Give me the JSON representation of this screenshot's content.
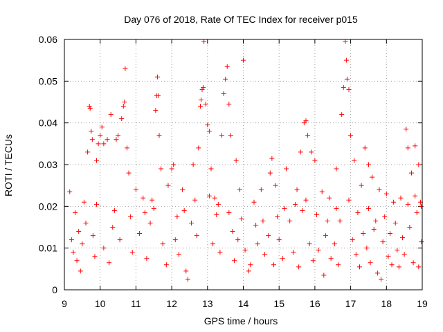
{
  "chart_data": {
    "type": "scatter",
    "title": "Day 076 of 2018, Rate Of TEC Index for receiver p015",
    "xlabel": "GPS time / hours",
    "ylabel": "ROTI / TECUs",
    "xlim": [
      9,
      19
    ],
    "ylim": [
      0,
      0.06
    ],
    "x_ticks": [
      9,
      10,
      11,
      12,
      13,
      14,
      15,
      16,
      17,
      18,
      19
    ],
    "y_ticks": [
      0,
      0.01,
      0.02,
      0.03,
      0.04,
      0.05,
      0.06
    ],
    "x_tick_labels": [
      "9",
      "10",
      "11",
      "12",
      "13",
      "14",
      "15",
      "16",
      "17",
      "18",
      "19"
    ],
    "y_tick_labels": [
      "0",
      "0.01",
      "0.02",
      "0.03",
      "0.04",
      "0.05",
      "0.06"
    ],
    "grid": true,
    "marker": "plus",
    "color": "#ff0000",
    "series": [
      {
        "name": "ROTI",
        "points": [
          [
            9.15,
            0.0235
          ],
          [
            9.3,
            0.0185
          ],
          [
            9.55,
            0.021
          ],
          [
            9.65,
            0.033
          ],
          [
            9.7,
            0.044
          ],
          [
            9.72,
            0.0435
          ],
          [
            9.75,
            0.038
          ],
          [
            9.78,
            0.036
          ],
          [
            9.9,
            0.031
          ],
          [
            9.95,
            0.035
          ],
          [
            10.0,
            0.037
          ],
          [
            10.05,
            0.039
          ],
          [
            10.1,
            0.035
          ],
          [
            10.2,
            0.036
          ],
          [
            10.3,
            0.042
          ],
          [
            10.45,
            0.036
          ],
          [
            10.5,
            0.037
          ],
          [
            10.6,
            0.041
          ],
          [
            10.65,
            0.044
          ],
          [
            10.68,
            0.045
          ],
          [
            10.7,
            0.053
          ],
          [
            10.75,
            0.034
          ],
          [
            10.8,
            0.028
          ],
          [
            11.0,
            0.024
          ],
          [
            11.2,
            0.022
          ],
          [
            11.45,
            0.0215
          ],
          [
            11.55,
            0.043
          ],
          [
            11.58,
            0.0465
          ],
          [
            11.6,
            0.051
          ],
          [
            11.62,
            0.0465
          ],
          [
            11.65,
            0.037
          ],
          [
            11.7,
            0.029
          ],
          [
            11.9,
            0.025
          ],
          [
            12.0,
            0.029
          ],
          [
            12.05,
            0.03
          ],
          [
            12.3,
            0.024
          ],
          [
            12.6,
            0.03
          ],
          [
            12.75,
            0.034
          ],
          [
            12.8,
            0.044
          ],
          [
            12.82,
            0.0455
          ],
          [
            12.85,
            0.048
          ],
          [
            12.88,
            0.0485
          ],
          [
            12.9,
            0.0595
          ],
          [
            12.95,
            0.0445
          ],
          [
            13.0,
            0.0395
          ],
          [
            13.05,
            0.038
          ],
          [
            13.1,
            0.029
          ],
          [
            13.2,
            0.022
          ],
          [
            13.4,
            0.037
          ],
          [
            13.45,
            0.047
          ],
          [
            13.5,
            0.0505
          ],
          [
            13.55,
            0.0535
          ],
          [
            13.6,
            0.0445
          ],
          [
            13.65,
            0.037
          ],
          [
            13.8,
            0.031
          ],
          [
            13.9,
            0.024
          ],
          [
            14.0,
            0.055
          ],
          [
            14.3,
            0.021
          ],
          [
            14.5,
            0.024
          ],
          [
            14.75,
            0.028
          ],
          [
            14.8,
            0.0315
          ],
          [
            14.9,
            0.025
          ],
          [
            15.2,
            0.029
          ],
          [
            15.5,
            0.024
          ],
          [
            15.6,
            0.033
          ],
          [
            15.7,
            0.04
          ],
          [
            15.75,
            0.0405
          ],
          [
            15.8,
            0.037
          ],
          [
            15.9,
            0.033
          ],
          [
            16.0,
            0.031
          ],
          [
            16.2,
            0.0235
          ],
          [
            16.4,
            0.022
          ],
          [
            16.6,
            0.029
          ],
          [
            16.75,
            0.042
          ],
          [
            16.8,
            0.0485
          ],
          [
            16.85,
            0.0595
          ],
          [
            16.88,
            0.055
          ],
          [
            16.9,
            0.0505
          ],
          [
            16.95,
            0.048
          ],
          [
            17.0,
            0.037
          ],
          [
            17.1,
            0.031
          ],
          [
            17.3,
            0.025
          ],
          [
            17.4,
            0.034
          ],
          [
            17.5,
            0.03
          ],
          [
            17.6,
            0.027
          ],
          [
            17.8,
            0.024
          ],
          [
            18.0,
            0.023
          ],
          [
            18.2,
            0.021
          ],
          [
            18.4,
            0.022
          ],
          [
            18.55,
            0.0385
          ],
          [
            18.6,
            0.034
          ],
          [
            18.7,
            0.028
          ],
          [
            18.8,
            0.0345
          ],
          [
            18.9,
            0.03
          ],
          [
            18.95,
            0.021
          ],
          [
            9.2,
            0.012
          ],
          [
            9.25,
            0.009
          ],
          [
            9.35,
            0.007
          ],
          [
            9.4,
            0.014
          ],
          [
            9.5,
            0.011
          ],
          [
            9.6,
            0.016
          ],
          [
            9.8,
            0.013
          ],
          [
            9.85,
            0.008
          ],
          [
            10.1,
            0.01
          ],
          [
            10.25,
            0.0065
          ],
          [
            10.35,
            0.015
          ],
          [
            10.55,
            0.012
          ],
          [
            10.9,
            0.009
          ],
          [
            11.1,
            0.0135
          ],
          [
            11.3,
            0.0075
          ],
          [
            11.4,
            0.016
          ],
          [
            11.75,
            0.011
          ],
          [
            11.85,
            0.006
          ],
          [
            12.1,
            0.012
          ],
          [
            12.2,
            0.0085
          ],
          [
            12.4,
            0.0045
          ],
          [
            12.45,
            0.0025
          ],
          [
            12.55,
            0.016
          ],
          [
            12.7,
            0.013
          ],
          [
            13.15,
            0.011
          ],
          [
            13.25,
            0.018
          ],
          [
            13.35,
            0.009
          ],
          [
            13.7,
            0.014
          ],
          [
            13.75,
            0.007
          ],
          [
            13.85,
            0.012
          ],
          [
            14.05,
            0.0095
          ],
          [
            14.15,
            0.0045
          ],
          [
            14.2,
            0.006
          ],
          [
            14.4,
            0.011
          ],
          [
            14.6,
            0.0085
          ],
          [
            14.7,
            0.013
          ],
          [
            14.85,
            0.006
          ],
          [
            15.0,
            0.012
          ],
          [
            15.1,
            0.0075
          ],
          [
            15.3,
            0.0165
          ],
          [
            15.4,
            0.009
          ],
          [
            15.55,
            0.0055
          ],
          [
            15.65,
            0.019
          ],
          [
            15.85,
            0.011
          ],
          [
            15.95,
            0.007
          ],
          [
            16.1,
            0.0095
          ],
          [
            16.25,
            0.0035
          ],
          [
            16.3,
            0.013
          ],
          [
            16.45,
            0.0075
          ],
          [
            16.55,
            0.011
          ],
          [
            16.65,
            0.006
          ],
          [
            16.7,
            0.0165
          ],
          [
            17.05,
            0.012
          ],
          [
            17.15,
            0.0085
          ],
          [
            17.25,
            0.0055
          ],
          [
            17.35,
            0.0135
          ],
          [
            17.45,
            0.01
          ],
          [
            17.55,
            0.0065
          ],
          [
            17.65,
            0.0145
          ],
          [
            17.75,
            0.004
          ],
          [
            17.85,
            0.0025
          ],
          [
            17.9,
            0.0115
          ],
          [
            18.05,
            0.008
          ],
          [
            18.1,
            0.0135
          ],
          [
            18.15,
            0.006
          ],
          [
            18.3,
            0.0095
          ],
          [
            18.35,
            0.0055
          ],
          [
            18.45,
            0.0125
          ],
          [
            18.5,
            0.0085
          ],
          [
            18.65,
            0.015
          ],
          [
            18.75,
            0.0065
          ],
          [
            18.85,
            0.0185
          ],
          [
            18.9,
            0.0055
          ],
          [
            18.98,
            0.0115
          ],
          [
            9.45,
            0.0045
          ],
          [
            9.9,
            0.0205
          ],
          [
            10.4,
            0.019
          ],
          [
            10.85,
            0.0175
          ],
          [
            11.25,
            0.0185
          ],
          [
            11.5,
            0.0195
          ],
          [
            12.15,
            0.0175
          ],
          [
            12.35,
            0.019
          ],
          [
            12.65,
            0.0215
          ],
          [
            13.05,
            0.0225
          ],
          [
            13.3,
            0.0205
          ],
          [
            13.6,
            0.0185
          ],
          [
            13.95,
            0.017
          ],
          [
            14.35,
            0.0155
          ],
          [
            14.55,
            0.0165
          ],
          [
            14.95,
            0.0175
          ],
          [
            15.15,
            0.0195
          ],
          [
            15.45,
            0.0205
          ],
          [
            15.75,
            0.0215
          ],
          [
            16.05,
            0.018
          ],
          [
            16.35,
            0.0165
          ],
          [
            16.6,
            0.0195
          ],
          [
            16.95,
            0.0215
          ],
          [
            17.2,
            0.0185
          ],
          [
            17.5,
            0.0195
          ],
          [
            17.7,
            0.0165
          ],
          [
            17.95,
            0.0175
          ],
          [
            18.25,
            0.016
          ],
          [
            18.6,
            0.0205
          ],
          [
            18.8,
            0.0225
          ],
          [
            18.97,
            0.02
          ]
        ]
      }
    ]
  }
}
